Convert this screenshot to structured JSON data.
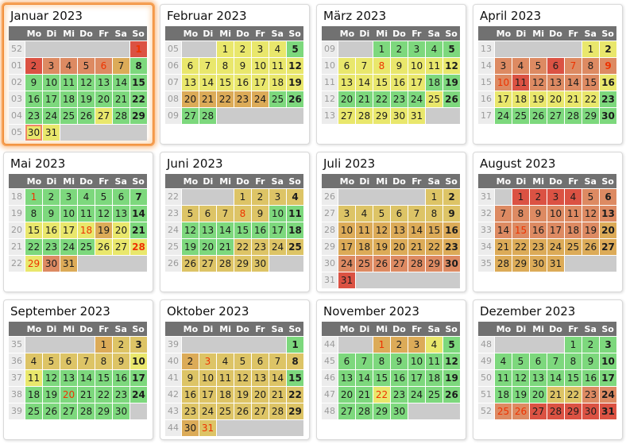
{
  "calendar": {
    "year": "2023",
    "weekday_headers": [
      "Mo",
      "Di",
      "Mi",
      "Do",
      "Fr",
      "Sa",
      "So"
    ],
    "palette": {
      "green": "#7dd87d",
      "yellow": "#e9e76c",
      "tan": "#ddc466",
      "amber": "#dcab58",
      "orange": "#dd8a62",
      "red": "#db5243",
      "empty": "#cbcbcb",
      "weeknum_bg": "#ececec",
      "weeknum_text": "#9a9a9a",
      "header_bg": "#717171",
      "header_text": "#ffffff",
      "holiday_text": "#ee3300",
      "today_border": "#ee8866"
    },
    "months": [
      {
        "title": "Januar 2023",
        "highlight": true,
        "weeks": [
          {
            "wn": "52",
            "days": [
              "",
              "",
              "",
              "",
              "",
              "",
              "1|red|h"
            ]
          },
          {
            "wn": "01",
            "days": [
              "2|red",
              "3|orange",
              "4|orange",
              "5|orange",
              "6|orange|h",
              "7|amber",
              "8|green"
            ]
          },
          {
            "wn": "02",
            "days": [
              "9|green",
              "10|green",
              "11|green",
              "12|green",
              "13|green",
              "14|green",
              "15|green"
            ]
          },
          {
            "wn": "03",
            "days": [
              "16|green",
              "17|green",
              "18|green",
              "19|green",
              "20|green",
              "21|green",
              "22|green"
            ]
          },
          {
            "wn": "04",
            "days": [
              "23|green",
              "24|green",
              "25|green",
              "26|green",
              "27|yellow",
              "28|green",
              "29|green"
            ]
          },
          {
            "wn": "05",
            "days": [
              "30|yellow|t",
              "31|yellow",
              "",
              "",
              "",
              "",
              ""
            ]
          }
        ]
      },
      {
        "title": "Februar 2023",
        "highlight": false,
        "weeks": [
          {
            "wn": "05",
            "days": [
              "",
              "",
              "1|yellow",
              "2|yellow",
              "3|yellow",
              "4|yellow",
              "5|green"
            ]
          },
          {
            "wn": "06",
            "days": [
              "6|yellow",
              "7|yellow",
              "8|yellow",
              "9|yellow",
              "10|yellow",
              "11|yellow",
              "12|yellow"
            ]
          },
          {
            "wn": "07",
            "days": [
              "13|yellow",
              "14|yellow",
              "15|yellow",
              "16|yellow",
              "17|yellow",
              "18|yellow",
              "19|yellow"
            ]
          },
          {
            "wn": "08",
            "days": [
              "20|amber",
              "21|amber",
              "22|amber",
              "23|amber",
              "24|amber",
              "25|green",
              "26|green"
            ]
          },
          {
            "wn": "09",
            "days": [
              "27|green",
              "28|green",
              "",
              "",
              "",
              "",
              ""
            ]
          }
        ]
      },
      {
        "title": "März 2023",
        "highlight": false,
        "weeks": [
          {
            "wn": "09",
            "days": [
              "",
              "",
              "1|green",
              "2|green",
              "3|green",
              "4|green",
              "5|green"
            ]
          },
          {
            "wn": "10",
            "days": [
              "6|yellow",
              "7|yellow",
              "8|yellow|h",
              "9|yellow",
              "10|yellow",
              "11|yellow",
              "12|yellow"
            ]
          },
          {
            "wn": "11",
            "days": [
              "13|yellow",
              "14|yellow",
              "15|yellow",
              "16|yellow",
              "17|yellow",
              "18|green",
              "19|green"
            ]
          },
          {
            "wn": "12",
            "days": [
              "20|green",
              "21|green",
              "22|green",
              "23|green",
              "24|green",
              "25|yellow",
              "26|green"
            ]
          },
          {
            "wn": "13",
            "days": [
              "27|yellow",
              "28|yellow",
              "29|yellow",
              "30|yellow",
              "31|yellow",
              "",
              ""
            ]
          }
        ]
      },
      {
        "title": "April 2023",
        "highlight": false,
        "weeks": [
          {
            "wn": "13",
            "days": [
              "",
              "",
              "",
              "",
              "",
              "1|yellow",
              "2|yellow"
            ]
          },
          {
            "wn": "14",
            "days": [
              "3|orange",
              "4|orange",
              "5|orange",
              "6|red",
              "7|orange|h",
              "8|orange",
              "9|orange|h"
            ]
          },
          {
            "wn": "15",
            "days": [
              "10|orange|h",
              "11|red",
              "12|orange",
              "13|orange",
              "14|orange",
              "15|orange",
              "16|yellow"
            ]
          },
          {
            "wn": "16",
            "days": [
              "17|yellow",
              "18|yellow",
              "19|yellow",
              "20|yellow",
              "21|yellow",
              "22|yellow",
              "23|green"
            ]
          },
          {
            "wn": "17",
            "days": [
              "24|green",
              "25|green",
              "26|green",
              "27|green",
              "28|green",
              "29|green",
              "30|green"
            ]
          }
        ]
      },
      {
        "title": "Mai 2023",
        "highlight": false,
        "weeks": [
          {
            "wn": "18",
            "days": [
              "1|green|h",
              "2|green",
              "3|green",
              "4|green",
              "5|green",
              "6|green",
              "7|green"
            ]
          },
          {
            "wn": "19",
            "days": [
              "8|green",
              "9|green",
              "10|green",
              "11|green",
              "12|green",
              "13|green",
              "14|green"
            ]
          },
          {
            "wn": "20",
            "days": [
              "15|yellow",
              "16|yellow",
              "17|yellow",
              "18|yellow|h",
              "19|amber",
              "20|yellow",
              "21|green"
            ]
          },
          {
            "wn": "21",
            "days": [
              "22|green",
              "23|green",
              "24|green",
              "25|green",
              "26|yellow",
              "27|yellow",
              "28|yellow|h"
            ]
          },
          {
            "wn": "22",
            "days": [
              "29|yellow|h",
              "30|orange",
              "31|amber",
              "",
              "",
              "",
              ""
            ]
          }
        ]
      },
      {
        "title": "Juni 2023",
        "highlight": false,
        "weeks": [
          {
            "wn": "22",
            "days": [
              "",
              "",
              "",
              "1|tan",
              "2|tan",
              "3|tan",
              "4|tan"
            ]
          },
          {
            "wn": "23",
            "days": [
              "5|tan",
              "6|tan",
              "7|tan",
              "8|tan|h",
              "9|tan",
              "10|green",
              "11|green"
            ]
          },
          {
            "wn": "24",
            "days": [
              "12|green",
              "13|green",
              "14|green",
              "15|green",
              "16|green",
              "17|green",
              "18|green"
            ]
          },
          {
            "wn": "25",
            "days": [
              "19|green",
              "20|green",
              "21|green",
              "22|tan",
              "23|tan",
              "24|tan",
              "25|tan"
            ]
          },
          {
            "wn": "26",
            "days": [
              "26|tan",
              "27|tan",
              "28|tan",
              "29|tan",
              "30|tan",
              "",
              ""
            ]
          }
        ]
      },
      {
        "title": "Juli 2023",
        "highlight": false,
        "weeks": [
          {
            "wn": "26",
            "days": [
              "",
              "",
              "",
              "",
              "",
              "1|tan",
              "2|tan"
            ]
          },
          {
            "wn": "27",
            "days": [
              "3|tan",
              "4|tan",
              "5|tan",
              "6|tan",
              "7|tan",
              "8|tan",
              "9|tan"
            ]
          },
          {
            "wn": "28",
            "days": [
              "10|amber",
              "11|amber",
              "12|amber",
              "13|amber",
              "14|amber",
              "15|amber",
              "16|amber"
            ]
          },
          {
            "wn": "29",
            "days": [
              "17|amber",
              "18|amber",
              "19|amber",
              "20|amber",
              "21|amber",
              "22|amber",
              "23|amber"
            ]
          },
          {
            "wn": "30",
            "days": [
              "24|orange",
              "25|orange",
              "26|orange",
              "27|orange",
              "28|orange",
              "29|orange",
              "30|orange"
            ]
          },
          {
            "wn": "31",
            "days": [
              "31|red",
              "",
              "",
              "",
              "",
              "",
              ""
            ]
          }
        ]
      },
      {
        "title": "August 2023",
        "highlight": false,
        "weeks": [
          {
            "wn": "31",
            "days": [
              "",
              "1|red",
              "2|red",
              "3|red",
              "4|red",
              "5|orange",
              "6|orange"
            ]
          },
          {
            "wn": "32",
            "days": [
              "7|orange",
              "8|orange",
              "9|orange",
              "10|orange",
              "11|orange",
              "12|orange",
              "13|orange"
            ]
          },
          {
            "wn": "33",
            "days": [
              "14|orange",
              "15|orange|h",
              "16|orange",
              "17|orange",
              "18|orange",
              "19|orange",
              "20|amber"
            ]
          },
          {
            "wn": "34",
            "days": [
              "21|amber",
              "22|amber",
              "23|amber",
              "24|amber",
              "25|amber",
              "26|amber",
              "27|amber"
            ]
          },
          {
            "wn": "35",
            "days": [
              "28|amber",
              "29|amber",
              "30|amber",
              "31|amber",
              "",
              "",
              ""
            ]
          }
        ]
      },
      {
        "title": "September 2023",
        "highlight": false,
        "weeks": [
          {
            "wn": "35",
            "days": [
              "",
              "",
              "",
              "",
              "1|amber",
              "2|tan",
              "3|tan"
            ]
          },
          {
            "wn": "36",
            "days": [
              "4|tan",
              "5|tan",
              "6|tan",
              "7|tan",
              "8|tan",
              "9|tan",
              "10|yellow"
            ]
          },
          {
            "wn": "37",
            "days": [
              "11|yellow",
              "12|green",
              "13|green",
              "14|green",
              "15|green",
              "16|green",
              "17|green"
            ]
          },
          {
            "wn": "38",
            "days": [
              "18|green",
              "19|green",
              "20|green|h",
              "21|green",
              "22|green",
              "23|green",
              "24|green"
            ]
          },
          {
            "wn": "39",
            "days": [
              "25|green",
              "26|green",
              "27|green",
              "28|green",
              "29|green",
              "30|green",
              ""
            ]
          }
        ]
      },
      {
        "title": "Oktober 2023",
        "highlight": false,
        "weeks": [
          {
            "wn": "39",
            "days": [
              "",
              "",
              "",
              "",
              "",
              "",
              "1|green"
            ]
          },
          {
            "wn": "40",
            "days": [
              "2|amber",
              "3|tan|h",
              "4|tan",
              "5|tan",
              "6|tan",
              "7|tan",
              "8|tan"
            ]
          },
          {
            "wn": "41",
            "days": [
              "9|tan",
              "10|tan",
              "11|tan",
              "12|tan",
              "13|tan",
              "14|tan",
              "15|green"
            ]
          },
          {
            "wn": "42",
            "days": [
              "16|tan",
              "17|tan",
              "18|tan",
              "19|tan",
              "20|tan",
              "21|tan",
              "22|tan"
            ]
          },
          {
            "wn": "43",
            "days": [
              "23|tan",
              "24|tan",
              "25|tan",
              "26|tan",
              "27|tan",
              "28|tan",
              "29|tan"
            ]
          },
          {
            "wn": "44",
            "days": [
              "30|amber",
              "31|tan|h",
              "",
              "",
              "",
              "",
              ""
            ]
          }
        ]
      },
      {
        "title": "November 2023",
        "highlight": false,
        "weeks": [
          {
            "wn": "44",
            "days": [
              "",
              "",
              "1|amber|h",
              "2|amber",
              "3|amber",
              "4|yellow",
              "5|green"
            ]
          },
          {
            "wn": "45",
            "days": [
              "6|green",
              "7|green",
              "8|green",
              "9|green",
              "10|green",
              "11|green",
              "12|green"
            ]
          },
          {
            "wn": "46",
            "days": [
              "13|green",
              "14|green",
              "15|green",
              "16|green",
              "17|green",
              "18|green",
              "19|green"
            ]
          },
          {
            "wn": "47",
            "days": [
              "20|green",
              "21|green",
              "22|yellow|h",
              "23|green",
              "24|green",
              "25|green",
              "26|green"
            ]
          },
          {
            "wn": "48",
            "days": [
              "27|green",
              "28|green",
              "29|green",
              "30|green",
              "",
              "",
              ""
            ]
          }
        ]
      },
      {
        "title": "Dezember 2023",
        "highlight": false,
        "weeks": [
          {
            "wn": "48",
            "days": [
              "",
              "",
              "",
              "",
              "1|green",
              "2|green",
              "3|green"
            ]
          },
          {
            "wn": "49",
            "days": [
              "4|green",
              "5|green",
              "6|green",
              "7|green",
              "8|green",
              "9|green",
              "10|green"
            ]
          },
          {
            "wn": "50",
            "days": [
              "11|green",
              "12|green",
              "13|green",
              "14|green",
              "15|green",
              "16|green",
              "17|green"
            ]
          },
          {
            "wn": "51",
            "days": [
              "18|green",
              "19|green",
              "20|green",
              "21|tan",
              "22|tan",
              "23|orange",
              "24|orange"
            ]
          },
          {
            "wn": "52",
            "days": [
              "25|orange|h",
              "26|orange|h",
              "27|red",
              "28|red",
              "29|red",
              "30|red",
              "31|red"
            ]
          }
        ]
      }
    ]
  }
}
